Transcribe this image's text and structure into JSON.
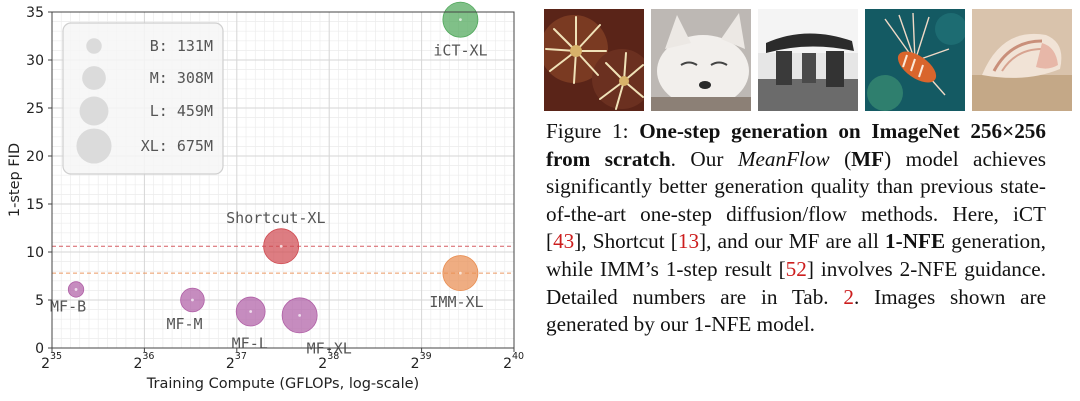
{
  "chart_data": {
    "type": "scatter",
    "xlabel": "Training Compute (GFLOPs, log-scale)",
    "ylabel": "1-step FID",
    "x_scale": "log2",
    "xlim": [
      35,
      40
    ],
    "ylim": [
      0,
      35
    ],
    "x_ticks": [
      {
        "base": "2",
        "exp": "35"
      },
      {
        "base": "2",
        "exp": "36"
      },
      {
        "base": "2",
        "exp": "37"
      },
      {
        "base": "2",
        "exp": "38"
      },
      {
        "base": "2",
        "exp": "39"
      },
      {
        "base": "2",
        "exp": "40"
      }
    ],
    "y_ticks": [
      "0",
      "5",
      "10",
      "15",
      "20",
      "25",
      "30",
      "35"
    ],
    "grid": true,
    "legend": {
      "placement": "top-left",
      "entries": [
        {
          "label": "B: 131M",
          "params_m": 131
        },
        {
          "label": "M: 308M",
          "params_m": 308
        },
        {
          "label": "L: 459M",
          "params_m": 459
        },
        {
          "label": "XL: 675M",
          "params_m": 675
        }
      ]
    },
    "points": [
      {
        "label": "MF-B",
        "log2_gflops": 35.26,
        "fid": 6.1,
        "params_m": 131,
        "color": "#b05fa6"
      },
      {
        "label": "MF-M",
        "log2_gflops": 36.52,
        "fid": 5.0,
        "params_m": 308,
        "color": "#b05fa6"
      },
      {
        "label": "MF-L",
        "log2_gflops": 37.15,
        "fid": 3.8,
        "params_m": 459,
        "color": "#b05fa6"
      },
      {
        "label": "MF-XL",
        "log2_gflops": 37.68,
        "fid": 3.4,
        "params_m": 675,
        "color": "#b05fa6"
      },
      {
        "label": "Shortcut-XL",
        "log2_gflops": 37.48,
        "fid": 10.6,
        "params_m": 675,
        "color": "#d04b52"
      },
      {
        "label": "IMM-XL",
        "log2_gflops": 39.42,
        "fid": 7.8,
        "params_m": 675,
        "color": "#e98e52"
      },
      {
        "label": "iCT-XL",
        "log2_gflops": 39.42,
        "fid": 34.2,
        "params_m": 675,
        "color": "#4fa75a"
      }
    ],
    "reference_lines": [
      {
        "fid": 10.6,
        "color": "#d04b52",
        "style": "dashed"
      },
      {
        "fid": 7.8,
        "color": "#e98e52",
        "style": "dashed"
      }
    ]
  },
  "thumbnails": [
    {
      "subject": "sea anemones",
      "colors": [
        "#6b2b1e",
        "#e0c99a"
      ]
    },
    {
      "subject": "arctic fox",
      "colors": [
        "#c9c3bf",
        "#f4f1ee"
      ]
    },
    {
      "subject": "stone dolmen",
      "colors": [
        "#3a3a3a",
        "#cfcfcf"
      ]
    },
    {
      "subject": "lionfish",
      "colors": [
        "#0f4d57",
        "#e26a2c"
      ]
    },
    {
      "subject": "seashell",
      "colors": [
        "#c9a88a",
        "#efe3d4"
      ]
    }
  ],
  "caption": {
    "prefix": "Figure 1: ",
    "title": "One-step generation on ImageNet 256×256 from scratch",
    "after_title": ". Our ",
    "method_italic": "MeanFlow",
    "paren_open": " (",
    "method_abbr": "MF",
    "paren_close": ")",
    "text1": " model achieves significantly better generation quality than previous state-of-the-art one-step diffusion/flow methods. Here, iCT [",
    "ref1": "43",
    "text2": "], Shortcut [",
    "ref2": "13",
    "text3": "], and our MF are all ",
    "nfe": "1-NFE",
    "text4": " generation, while IMM’s 1-step result [",
    "ref3": "52",
    "text5": "] involves 2-NFE guidance. Detailed numbers are in Tab. ",
    "ref4": "2",
    "text6": ". Images shown are generated by our 1-NFE model."
  },
  "colors": {
    "mf": "#b05fa6",
    "shortcut": "#d04b52",
    "imm": "#e98e52",
    "ict": "#4fa75a",
    "reference": "#cc1d1d"
  }
}
